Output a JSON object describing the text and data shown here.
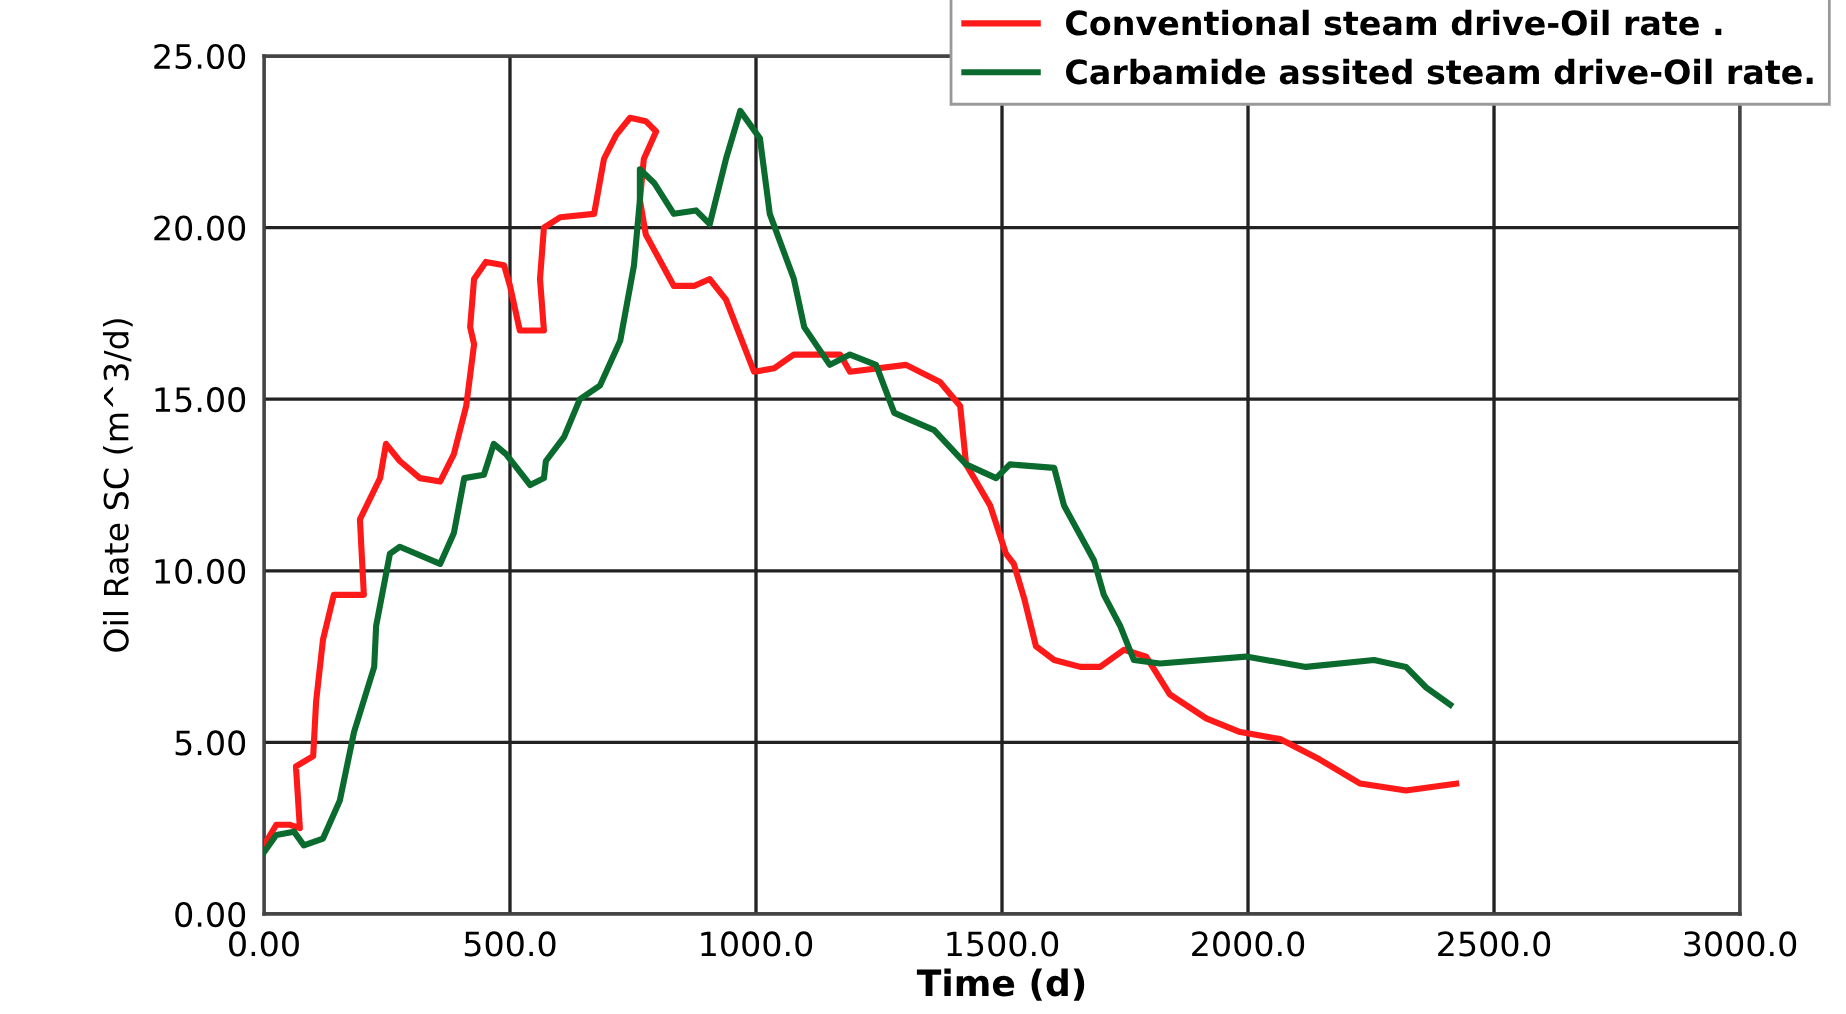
{
  "chart_data": {
    "type": "line",
    "xlabel": "Time (d)",
    "ylabel": "Oil Rate SC (m^3/d)",
    "xlim": [
      0,
      3000
    ],
    "ylim": [
      0,
      25
    ],
    "xticks": [
      {
        "value": 0,
        "label": "0.00"
      },
      {
        "value": 500,
        "label": "500.0"
      },
      {
        "value": 1000,
        "label": "1000.0"
      },
      {
        "value": 1500,
        "label": "1500.0"
      },
      {
        "value": 2000,
        "label": "2000.0"
      },
      {
        "value": 2500,
        "label": "2500.0"
      },
      {
        "value": 3000,
        "label": "3000.0"
      }
    ],
    "yticks": [
      {
        "value": 0,
        "label": "0.00"
      },
      {
        "value": 5,
        "label": "5.00"
      },
      {
        "value": 10,
        "label": "10.00"
      },
      {
        "value": 15,
        "label": "15.00"
      },
      {
        "value": 20,
        "label": "20.00"
      },
      {
        "value": 25,
        "label": "25.00"
      }
    ],
    "grid": true,
    "legend": "top right",
    "marker": "none",
    "line_style": "solid",
    "series": [
      {
        "name": "Conventional steam drive-Oil rate .",
        "color": "#ff1a1a",
        "x": [
          0,
          25,
          53,
          73,
          65,
          100,
          106,
          120,
          142,
          203,
          195,
          236,
          248,
          276,
          317,
          358,
          386,
          411,
          427,
          419,
          427,
          451,
          488,
          500,
          520,
          569,
          561,
          569,
          602,
          671,
          691,
          716,
          744,
          776,
          797,
          772,
          764,
          776,
          833,
          874,
          906,
          939,
          996,
          1037,
          1077,
          1171,
          1191,
          1305,
          1374,
          1415,
          1427,
          1476,
          1508,
          1524,
          1545,
          1569,
          1606,
          1659,
          1699,
          1748,
          1793,
          1841,
          1915,
          1984,
          2065,
          2146,
          2228,
          2321,
          2423
        ],
        "values": [
          2.0,
          2.6,
          2.6,
          2.5,
          4.3,
          4.6,
          6.2,
          8.0,
          9.3,
          9.3,
          11.5,
          12.7,
          13.7,
          13.2,
          12.7,
          12.6,
          13.4,
          14.8,
          16.6,
          17.1,
          18.5,
          19.0,
          18.9,
          18.3,
          17.0,
          17.0,
          18.5,
          20.0,
          20.3,
          20.4,
          22.0,
          22.7,
          23.2,
          23.1,
          22.8,
          22.0,
          20.8,
          19.8,
          18.3,
          18.3,
          18.5,
          17.9,
          15.8,
          15.9,
          16.3,
          16.3,
          15.8,
          16.0,
          15.5,
          14.8,
          13.1,
          11.9,
          10.5,
          10.2,
          9.2,
          7.8,
          7.4,
          7.2,
          7.2,
          7.7,
          7.5,
          6.4,
          5.7,
          5.3,
          5.1,
          4.5,
          3.8,
          3.6,
          3.8
        ]
      },
      {
        "name": "Carbamide assited steam drive-Oil rate.",
        "color": "#0b6b2e",
        "x": [
          0,
          25,
          61,
          81,
          120,
          154,
          183,
          224,
          228,
          256,
          276,
          358,
          386,
          407,
          447,
          467,
          492,
          541,
          569,
          573,
          610,
          642,
          683,
          724,
          752,
          764,
          764,
          793,
          833,
          878,
          906,
          939,
          968,
          1008,
          1028,
          1077,
          1098,
          1150,
          1191,
          1244,
          1281,
          1362,
          1427,
          1488,
          1516,
          1606,
          1626,
          1687,
          1707,
          1740,
          1768,
          1821,
          1996,
          2118,
          2256,
          2321,
          2362,
          2411
        ],
        "values": [
          1.8,
          2.3,
          2.4,
          2.0,
          2.2,
          3.3,
          5.3,
          7.2,
          8.4,
          10.5,
          10.7,
          10.2,
          11.1,
          12.7,
          12.8,
          13.7,
          13.4,
          12.5,
          12.7,
          13.2,
          13.9,
          15.0,
          15.4,
          16.7,
          18.9,
          20.8,
          21.7,
          21.3,
          20.4,
          20.5,
          20.1,
          22.0,
          23.4,
          22.6,
          20.4,
          18.5,
          17.1,
          16.0,
          16.3,
          16.0,
          14.6,
          14.1,
          13.1,
          12.7,
          13.1,
          13.0,
          11.9,
          10.3,
          9.3,
          8.4,
          7.4,
          7.3,
          7.5,
          7.2,
          7.4,
          7.2,
          6.6,
          6.1
        ]
      }
    ]
  }
}
